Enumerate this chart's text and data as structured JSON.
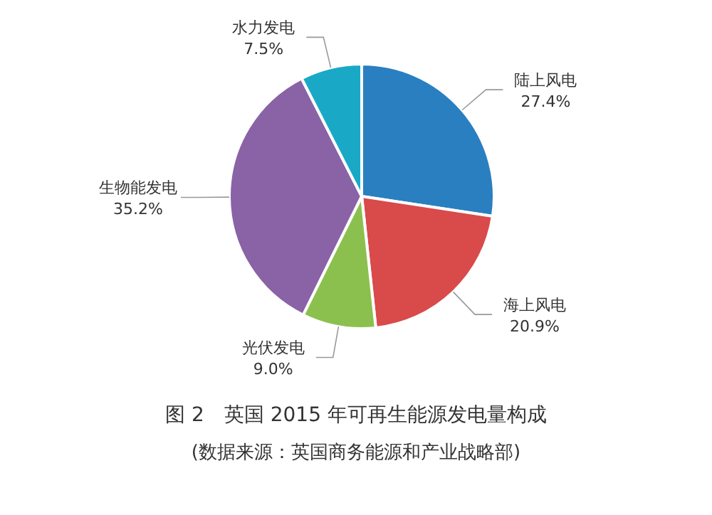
{
  "chart_data": {
    "type": "pie",
    "title": "图 2　英国 2015 年可再生能源发电量构成",
    "annotations": [
      "(数据来源：英国商务能源和产业战略部)"
    ],
    "categories": [
      "陆上风电",
      "海上风电",
      "光伏发电",
      "生物能发电",
      "水力发电"
    ],
    "values": [
      27.4,
      20.9,
      9.0,
      35.2,
      7.5
    ],
    "value_labels": [
      "27.4%",
      "20.9%",
      "9.0%",
      "35.2%",
      "7.5%"
    ],
    "colors": [
      "#2a7fc0",
      "#d94a4a",
      "#8cc04e",
      "#8a62a6",
      "#19a9c7"
    ]
  }
}
